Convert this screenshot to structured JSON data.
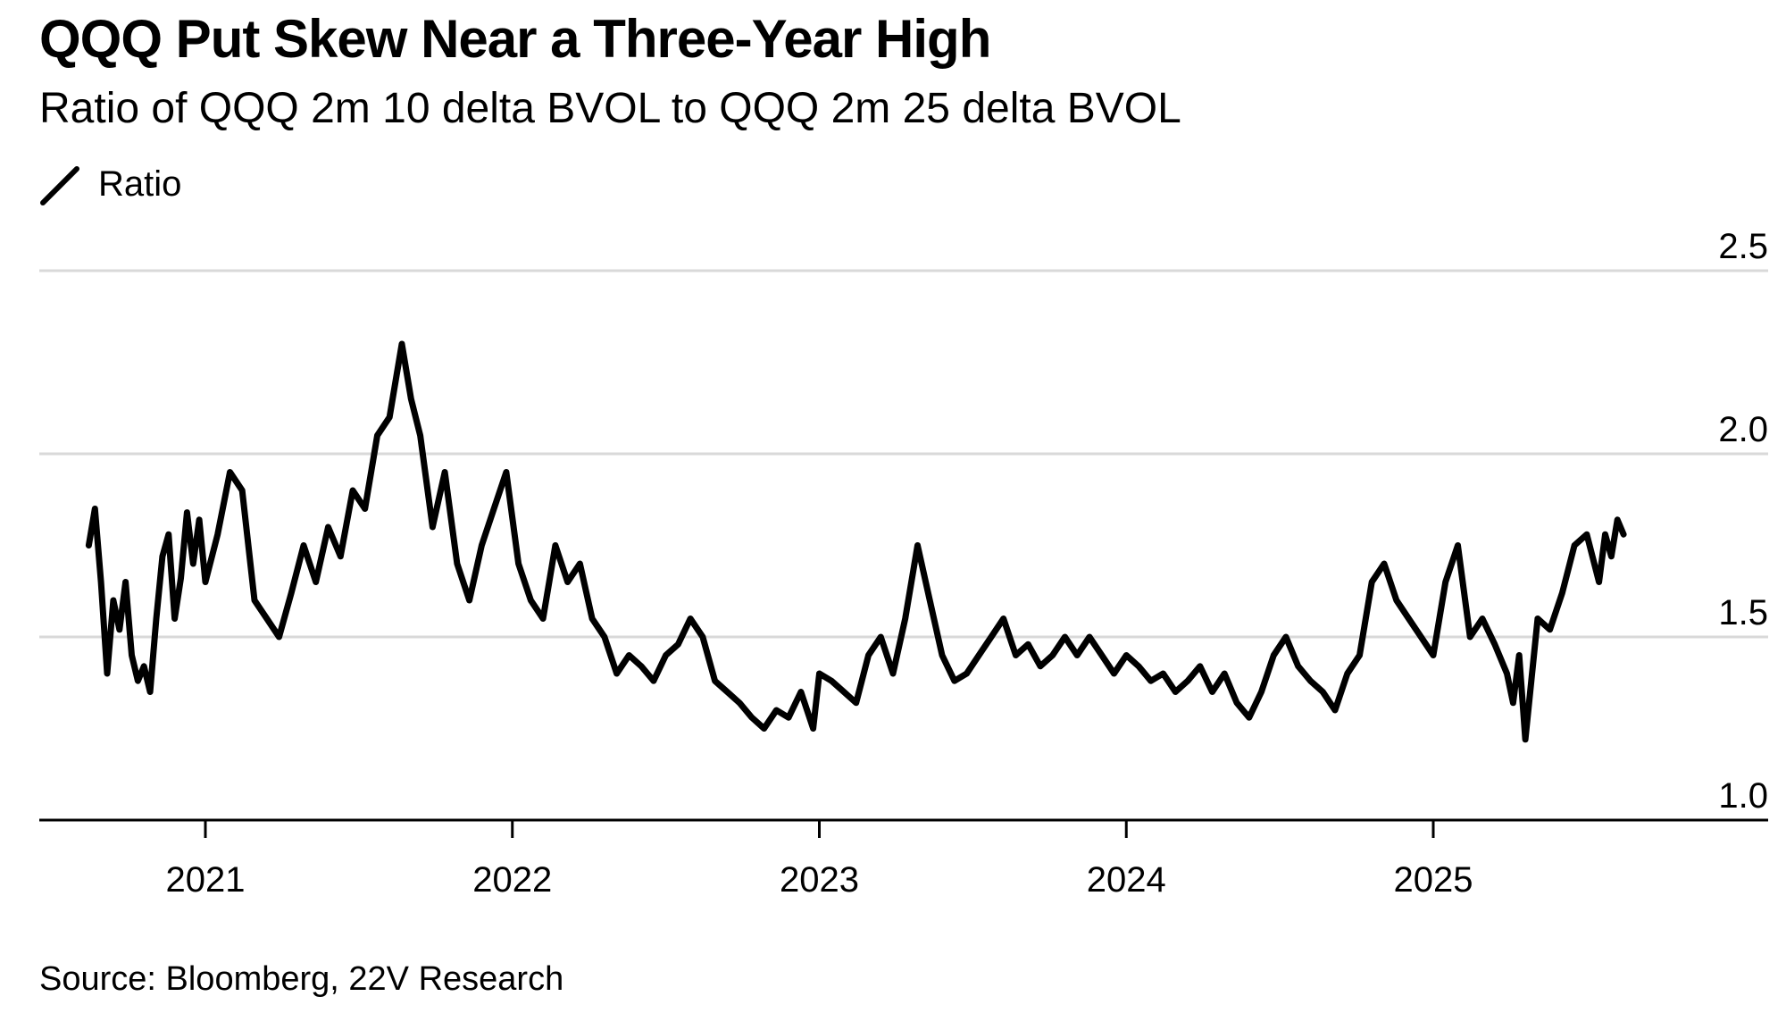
{
  "header": {
    "title": "QQQ Put Skew Near a Three-Year High",
    "subtitle": "Ratio of QQQ 2m 10 delta BVOL to QQQ 2m 25 delta BVOL"
  },
  "footer": {
    "source": "Source: Bloomberg, 22V Research"
  },
  "colors": {
    "line": "#000000",
    "grid": "#d9d9d9",
    "axis": "#000000",
    "text": "#000000"
  },
  "chart_data": {
    "type": "line",
    "title": "QQQ Put Skew Near a Three-Year High",
    "subtitle": "Ratio of QQQ 2m 10 delta BVOL to QQQ 2m 25 delta BVOL",
    "xlabel": "",
    "ylabel": "",
    "x_type": "time",
    "xlim": [
      2020.46,
      2025.89
    ],
    "ylim": [
      1.0,
      2.5
    ],
    "y_ticks": [
      1.0,
      1.5,
      2.0,
      2.5
    ],
    "y_tick_labels": [
      "1.0",
      "1.5",
      "2.0",
      "2.5"
    ],
    "x_ticks": [
      2021,
      2022,
      2023,
      2024,
      2025
    ],
    "x_tick_labels": [
      "2021",
      "2022",
      "2023",
      "2024",
      "2025"
    ],
    "y_axis_position": "right",
    "grid": true,
    "legend_position": "top-left",
    "series": [
      {
        "name": "Ratio",
        "color": "#000000",
        "x": [
          2020.62,
          2020.64,
          2020.66,
          2020.68,
          2020.7,
          2020.72,
          2020.74,
          2020.76,
          2020.78,
          2020.8,
          2020.82,
          2020.84,
          2020.86,
          2020.88,
          2020.9,
          2020.92,
          2020.94,
          2020.96,
          2020.98,
          2021.0,
          2021.04,
          2021.08,
          2021.12,
          2021.16,
          2021.2,
          2021.24,
          2021.28,
          2021.32,
          2021.36,
          2021.4,
          2021.44,
          2021.48,
          2021.52,
          2021.56,
          2021.6,
          2021.64,
          2021.67,
          2021.7,
          2021.74,
          2021.78,
          2021.82,
          2021.86,
          2021.9,
          2021.94,
          2021.98,
          2022.02,
          2022.06,
          2022.1,
          2022.14,
          2022.18,
          2022.22,
          2022.26,
          2022.3,
          2022.34,
          2022.38,
          2022.42,
          2022.46,
          2022.5,
          2022.54,
          2022.58,
          2022.62,
          2022.66,
          2022.7,
          2022.74,
          2022.78,
          2022.82,
          2022.86,
          2022.9,
          2022.94,
          2022.98,
          2023.0,
          2023.04,
          2023.08,
          2023.12,
          2023.16,
          2023.2,
          2023.24,
          2023.28,
          2023.32,
          2023.36,
          2023.4,
          2023.44,
          2023.48,
          2023.52,
          2023.56,
          2023.6,
          2023.64,
          2023.68,
          2023.72,
          2023.76,
          2023.8,
          2023.84,
          2023.88,
          2023.92,
          2023.96,
          2024.0,
          2024.04,
          2024.08,
          2024.12,
          2024.16,
          2024.2,
          2024.24,
          2024.28,
          2024.32,
          2024.36,
          2024.4,
          2024.44,
          2024.48,
          2024.52,
          2024.56,
          2024.6,
          2024.64,
          2024.68,
          2024.72,
          2024.76,
          2024.8,
          2024.84,
          2024.88,
          2024.92,
          2024.96,
          2025.0,
          2025.04,
          2025.08,
          2025.12,
          2025.16,
          2025.2,
          2025.24,
          2025.26,
          2025.28,
          2025.3,
          2025.34,
          2025.38,
          2025.42,
          2025.46,
          2025.5,
          2025.54,
          2025.56,
          2025.58,
          2025.6,
          2025.62
        ],
        "values": [
          1.75,
          1.85,
          1.65,
          1.4,
          1.6,
          1.52,
          1.65,
          1.45,
          1.38,
          1.42,
          1.35,
          1.55,
          1.72,
          1.78,
          1.55,
          1.66,
          1.84,
          1.7,
          1.82,
          1.65,
          1.78,
          1.95,
          1.9,
          1.6,
          1.55,
          1.5,
          1.62,
          1.75,
          1.65,
          1.8,
          1.72,
          1.9,
          1.85,
          2.05,
          2.1,
          2.3,
          2.15,
          2.05,
          1.8,
          1.95,
          1.7,
          1.6,
          1.75,
          1.85,
          1.95,
          1.7,
          1.6,
          1.55,
          1.75,
          1.65,
          1.7,
          1.55,
          1.5,
          1.4,
          1.45,
          1.42,
          1.38,
          1.45,
          1.48,
          1.55,
          1.5,
          1.38,
          1.35,
          1.32,
          1.28,
          1.25,
          1.3,
          1.28,
          1.35,
          1.25,
          1.4,
          1.38,
          1.35,
          1.32,
          1.45,
          1.5,
          1.4,
          1.55,
          1.75,
          1.6,
          1.45,
          1.38,
          1.4,
          1.45,
          1.5,
          1.55,
          1.45,
          1.48,
          1.42,
          1.45,
          1.5,
          1.45,
          1.5,
          1.45,
          1.4,
          1.45,
          1.42,
          1.38,
          1.4,
          1.35,
          1.38,
          1.42,
          1.35,
          1.4,
          1.32,
          1.28,
          1.35,
          1.45,
          1.5,
          1.42,
          1.38,
          1.35,
          1.3,
          1.4,
          1.45,
          1.65,
          1.7,
          1.6,
          1.55,
          1.5,
          1.45,
          1.65,
          1.75,
          1.5,
          1.55,
          1.48,
          1.4,
          1.32,
          1.45,
          1.22,
          1.55,
          1.52,
          1.62,
          1.75,
          1.78,
          1.65,
          1.78,
          1.72,
          1.82,
          1.78
        ]
      }
    ],
    "legend": [
      "Ratio"
    ],
    "source": "Source: Bloomberg, 22V Research"
  }
}
